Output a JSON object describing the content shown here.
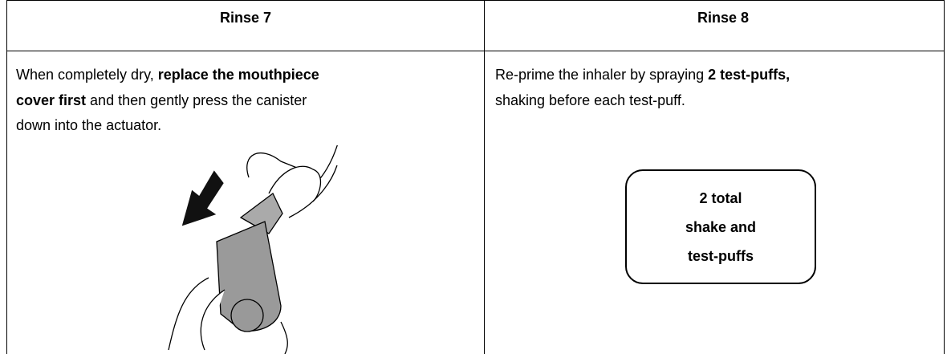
{
  "table": {
    "headers": [
      "Rinse 7",
      "Rinse 8"
    ],
    "cells": [
      {
        "lines": [
          [
            {
              "text": "When completely dry, "
            },
            {
              "text": "replace the mouthpiece",
              "bold": true
            }
          ],
          [
            {
              "text": "cover first",
              "bold": true
            },
            {
              "text": " and then gently press the canister"
            }
          ],
          [
            {
              "text": "down into the actuator."
            }
          ]
        ]
      },
      {
        "lines": [
          [
            {
              "text": "Re-prime the inhaler by spraying "
            },
            {
              "text": "2 test-puffs,",
              "bold": true
            }
          ],
          [
            {
              "text": "shaking before each test-puff."
            }
          ]
        ],
        "box": [
          "2 total",
          "shake and",
          "test-puffs"
        ]
      }
    ]
  }
}
